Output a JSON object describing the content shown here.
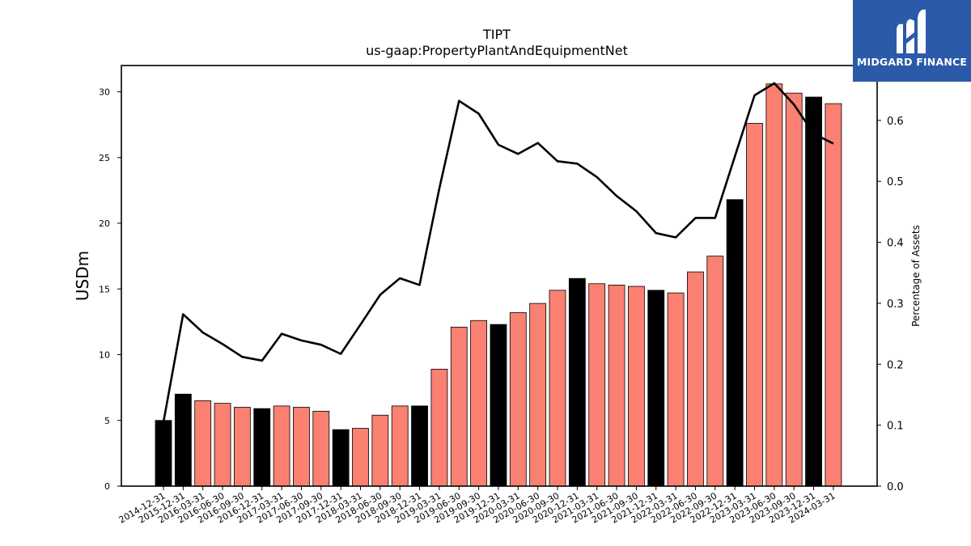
{
  "logo": {
    "name": "MIDGARD FINANCE",
    "icon": "midgard-m-logo-icon",
    "background": "#2b5aa8"
  },
  "chart_data": {
    "type": "bar",
    "title": "TIPT",
    "subtitle": "us-gaap:PropertyPlantAndEquipmentNet",
    "ylabel": "USDm",
    "y2label": "Percentage of Assets",
    "ylim": [
      0,
      32
    ],
    "y2lim": [
      0,
      0.69
    ],
    "yticks": [
      0,
      5,
      10,
      15,
      20,
      25,
      30
    ],
    "y2ticks": [
      0.0,
      0.1,
      0.2,
      0.3,
      0.4,
      0.5,
      0.6
    ],
    "y2tick_labels": [
      "0.0",
      "0.1",
      "0.2",
      "0.3",
      "0.4",
      "0.5",
      "0.6"
    ],
    "grid": false,
    "categories": [
      "2014-12-31",
      "2015-12-31",
      "2016-03-31",
      "2016-06-30",
      "2016-09-30",
      "2016-12-31",
      "2017-03-31",
      "2017-06-30",
      "2017-09-30",
      "2017-12-31",
      "2018-03-31",
      "2018-06-30",
      "2018-09-30",
      "2018-12-31",
      "2019-03-31",
      "2019-06-30",
      "2019-09-30",
      "2019-12-31",
      "2020-03-31",
      "2020-06-30",
      "2020-09-30",
      "2020-12-31",
      "2021-03-31",
      "2021-06-30",
      "2021-09-30",
      "2021-12-31",
      "2022-03-31",
      "2022-06-30",
      "2022-09-30",
      "2022-12-31",
      "2023-03-31",
      "2023-06-30",
      "2023-09-30",
      "2023-12-31",
      "2024-03-31"
    ],
    "series": [
      {
        "type": "bar",
        "axis": "left",
        "values": [
          5.0,
          7.0,
          6.5,
          6.3,
          6.0,
          5.9,
          6.1,
          6.0,
          5.7,
          4.3,
          4.4,
          5.4,
          6.1,
          6.1,
          8.9,
          12.1,
          12.6,
          12.3,
          13.2,
          13.9,
          14.9,
          15.8,
          15.4,
          15.3,
          15.2,
          14.9,
          14.7,
          16.3,
          17.5,
          21.8,
          27.6,
          30.6,
          29.9,
          29.6,
          29.1
        ],
        "colors": [
          "#000000",
          "#000000",
          "#fa8072",
          "#fa8072",
          "#fa8072",
          "#000000",
          "#fa8072",
          "#fa8072",
          "#fa8072",
          "#000000",
          "#fa8072",
          "#fa8072",
          "#fa8072",
          "#000000",
          "#fa8072",
          "#fa8072",
          "#fa8072",
          "#000000",
          "#fa8072",
          "#fa8072",
          "#fa8072",
          "#000000",
          "#fa8072",
          "#fa8072",
          "#fa8072",
          "#000000",
          "#fa8072",
          "#fa8072",
          "#fa8072",
          "#000000",
          "#fa8072",
          "#fa8072",
          "#fa8072",
          "#000000",
          "#fa8072"
        ]
      },
      {
        "type": "line",
        "axis": "right",
        "color": "#000000",
        "values": [
          0.105,
          0.282,
          0.252,
          0.233,
          0.212,
          0.206,
          0.25,
          0.239,
          0.232,
          0.217,
          0.265,
          0.314,
          0.341,
          0.33,
          0.488,
          0.632,
          0.611,
          0.56,
          0.545,
          0.563,
          0.533,
          0.529,
          0.507,
          0.476,
          0.451,
          0.415,
          0.408,
          0.44,
          0.44,
          0.541,
          0.641,
          0.661,
          0.626,
          0.578,
          0.562
        ]
      }
    ]
  }
}
